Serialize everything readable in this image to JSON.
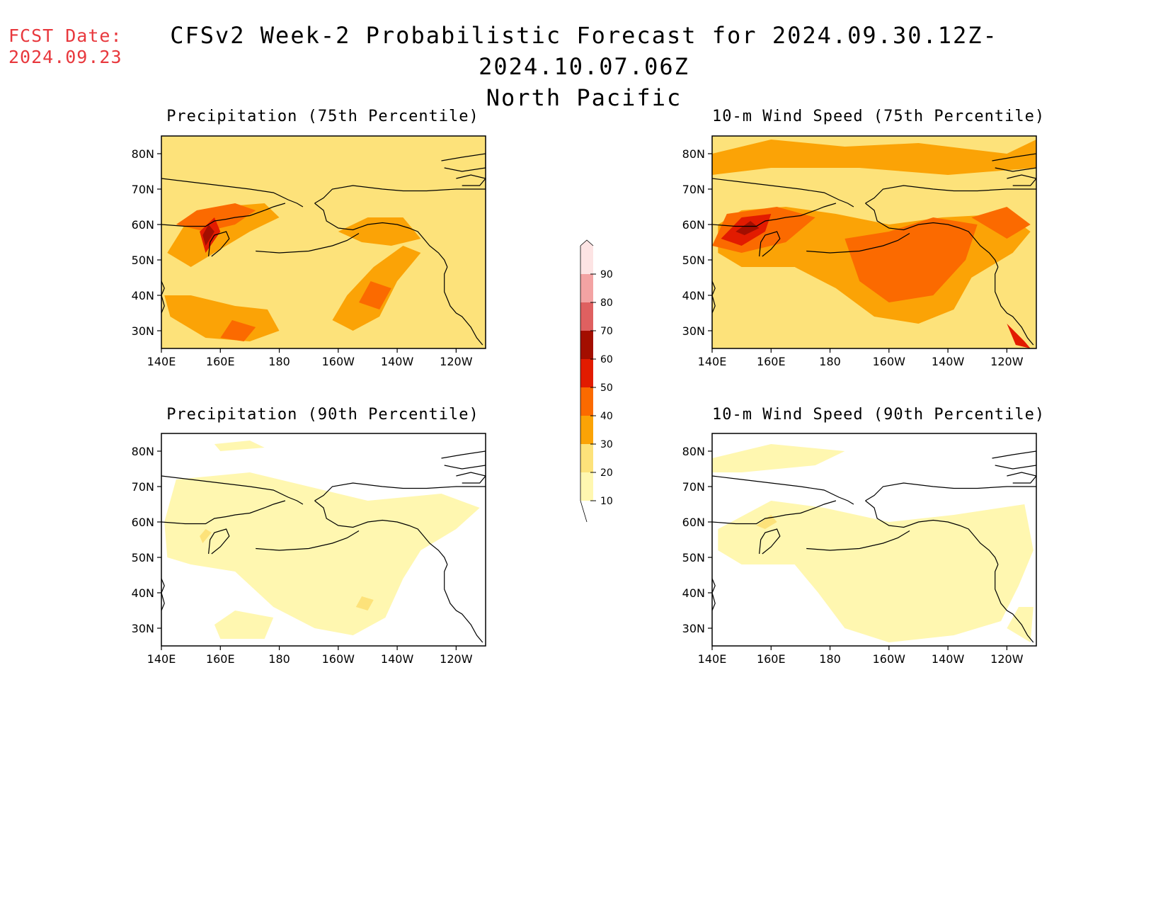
{
  "header": {
    "fcst_label": "FCST Date:",
    "fcst_date": "2024.09.23",
    "title": "CFSv2 Week-2 Probabilistic Forecast for 2024.09.30.12Z-2024.10.07.06Z",
    "subtitle": "North Pacific"
  },
  "axes": {
    "lon_labels": [
      "140E",
      "160E",
      "180",
      "160W",
      "140W",
      "120W"
    ],
    "lat_labels": [
      "80N",
      "70N",
      "60N",
      "50N",
      "40N",
      "30N"
    ]
  },
  "colorbar": {
    "levels": [
      "10",
      "20",
      "30",
      "40",
      "50",
      "60",
      "70",
      "80",
      "90"
    ],
    "colors": [
      "#fff7b0",
      "#fde27a",
      "#fba306",
      "#fb6a00",
      "#e21b00",
      "#a30e00",
      "#df6060",
      "#f3a3a3",
      "#fde4e4"
    ]
  },
  "panels": [
    {
      "id": "precip-75",
      "title": "Precipitation (75th Percentile)",
      "intensity": "high-precip"
    },
    {
      "id": "wind-75",
      "title": "10-m Wind Speed (75th Percentile)",
      "intensity": "high-wind"
    },
    {
      "id": "precip-90",
      "title": "Precipitation (90th Percentile)",
      "intensity": "low-precip"
    },
    {
      "id": "wind-90",
      "title": "10-m Wind Speed (90th Percentile)",
      "intensity": "low-wind"
    }
  ]
}
